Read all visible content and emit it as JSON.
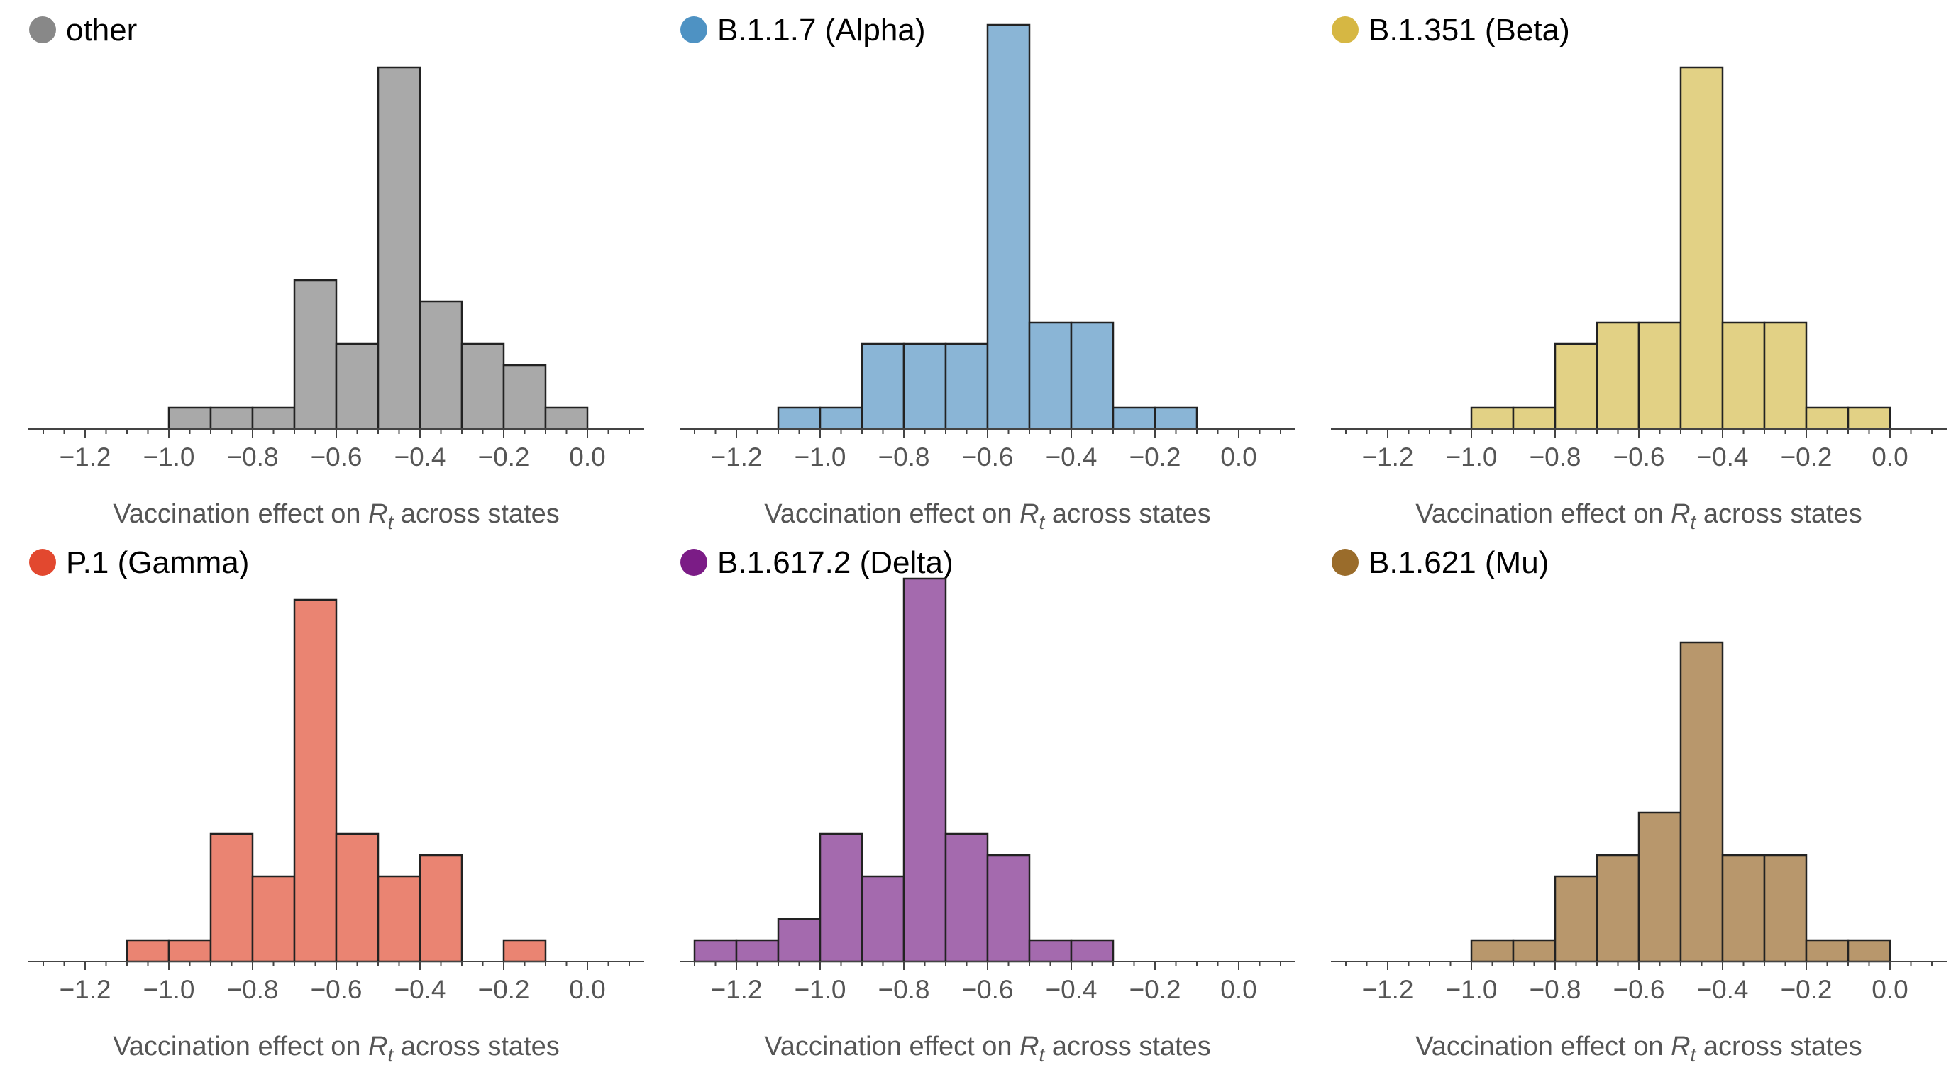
{
  "xlabel": {
    "prefix": "Vaccination effect on ",
    "variable": "R",
    "subscript": "t",
    "suffix": " across states"
  },
  "x_ticks": [
    -1.2,
    -1.0,
    -0.8,
    -0.6,
    -0.4,
    -0.2,
    0.0
  ],
  "x_tick_labels": [
    "−1.2",
    "−1.0",
    "−0.8",
    "−0.6",
    "−0.4",
    "−0.2",
    "0.0"
  ],
  "chart_data": [
    {
      "type": "bar",
      "title": "other",
      "marker_color": "#888888",
      "bar_color": "#a9a9a9",
      "xlim": [
        -1.3,
        0.13
      ],
      "bin_width": 0.1,
      "bin_starts": [
        -1.0,
        -0.9,
        -0.8,
        -0.7,
        -0.6,
        -0.5,
        -0.4,
        -0.3,
        -0.2,
        -0.1
      ],
      "counts": [
        1,
        1,
        1,
        7,
        4,
        17,
        6,
        4,
        3,
        1
      ]
    },
    {
      "type": "bar",
      "title": "B.1.1.7 (Alpha)",
      "marker_color": "#4e92c3",
      "bar_color": "#8ab5d6",
      "xlim": [
        -1.3,
        0.13
      ],
      "bin_width": 0.1,
      "bin_starts": [
        -1.1,
        -1.0,
        -0.9,
        -0.8,
        -0.7,
        -0.6,
        -0.5,
        -0.4,
        -0.3,
        -0.2
      ],
      "counts": [
        1,
        1,
        4,
        4,
        4,
        19,
        5,
        5,
        1,
        1
      ]
    },
    {
      "type": "bar",
      "title": "B.1.351 (Beta)",
      "marker_color": "#d6b743",
      "bar_color": "#e2d185",
      "xlim": [
        -1.3,
        0.13
      ],
      "bin_width": 0.1,
      "bin_starts": [
        -1.0,
        -0.9,
        -0.8,
        -0.7,
        -0.6,
        -0.5,
        -0.4,
        -0.3,
        -0.2,
        -0.1
      ],
      "counts": [
        1,
        1,
        4,
        5,
        5,
        17,
        5,
        5,
        1,
        1
      ]
    },
    {
      "type": "bar",
      "title": "P.1 (Gamma)",
      "marker_color": "#e2482f",
      "bar_color": "#ea8472",
      "xlim": [
        -1.3,
        0.13
      ],
      "bin_width": 0.1,
      "bin_starts": [
        -1.1,
        -1.0,
        -0.9,
        -0.8,
        -0.7,
        -0.6,
        -0.5,
        -0.4,
        -0.2
      ],
      "counts": [
        1,
        1,
        6,
        4,
        17,
        6,
        4,
        5,
        1
      ]
    },
    {
      "type": "bar",
      "title": "B.1.617.2 (Delta)",
      "marker_color": "#7b1c86",
      "bar_color": "#a46aae",
      "xlim": [
        -1.3,
        0.13
      ],
      "bin_width": 0.1,
      "bin_starts": [
        -1.3,
        -1.2,
        -1.1,
        -1.0,
        -0.9,
        -0.8,
        -0.7,
        -0.6,
        -0.5,
        -0.4
      ],
      "counts": [
        1,
        1,
        2,
        6,
        4,
        18,
        6,
        5,
        1,
        1
      ]
    },
    {
      "type": "bar",
      "title": "B.1.621 (Mu)",
      "marker_color": "#9a6c2b",
      "bar_color": "#b8976c",
      "xlim": [
        -1.3,
        0.13
      ],
      "bin_width": 0.1,
      "bin_starts": [
        -1.0,
        -0.9,
        -0.8,
        -0.7,
        -0.6,
        -0.5,
        -0.4,
        -0.3,
        -0.2,
        -0.1
      ],
      "counts": [
        1,
        1,
        4,
        5,
        7,
        15,
        5,
        5,
        1,
        1
      ]
    }
  ]
}
